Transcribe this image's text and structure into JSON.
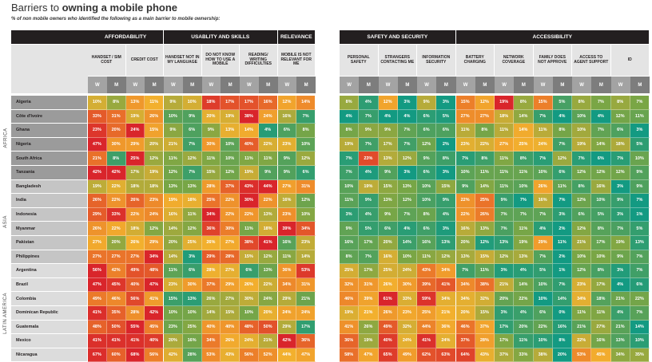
{
  "header": {
    "title_light": "Barriers to ",
    "title_bold": "owning a mobile phone",
    "subtitle": "% of non mobile owners who identified the following as a main barrier to mobile ownership:"
  },
  "chart_data": {
    "type": "heatmap",
    "title": "Barriers to owning a mobile phone",
    "subtitle": "% of non mobile owners who identified the following as a main barrier to mobile ownership:",
    "value_unit": "%",
    "gender_labels": {
      "w": "W",
      "m": "M"
    },
    "color_scale": [
      "#139a82",
      "#7aa645",
      "#f2b02e",
      "#ec7f2a",
      "#d9252b"
    ],
    "regions": [
      {
        "name": "AFRICA",
        "countries": 6,
        "label_bg": "#9b9b9b"
      },
      {
        "name": "ASIA",
        "countries": 6,
        "label_bg": "#c5c5c5"
      },
      {
        "name": "LATIN AMERICA",
        "countries": 7,
        "label_bg": "#dcdcdc"
      }
    ],
    "tables": [
      {
        "categories": [
          {
            "name": "AFFORDABILITY",
            "barriers": [
              "HANDSET / SIM COST",
              "CREDIT COST"
            ]
          },
          {
            "name": "USABLITY AND SKILLS",
            "barriers": [
              "HANDSET NOT IN MY LANGUAGE",
              "DO NOT KNOW HOW TO USE A MOBILE",
              "READING/ WRITING DIFFICULTIES"
            ]
          },
          {
            "name": "RELEVANCE",
            "barriers": [
              "MOBILE IS NOT RELEVANT FOR ME"
            ]
          }
        ]
      },
      {
        "categories": [
          {
            "name": "SAFETY AND SECURITY",
            "barriers": [
              "PERSONAL SAFETY",
              "STRANGERS CONTACTING ME",
              "INFORMATION SECURITY"
            ]
          },
          {
            "name": "ACCESSIBILITY",
            "barriers": [
              "BATTERY CHARGING",
              "NETWORK COVERAGE",
              "FAMILY DOES NOT APPROVE",
              "ACCESS TO AGENT SUPPORT",
              "ID"
            ]
          }
        ]
      }
    ],
    "countries": [
      {
        "name": "Algeria",
        "left": [
          10,
          8,
          13,
          11,
          9,
          10,
          18,
          17,
          17,
          16,
          12,
          14
        ],
        "right": [
          8,
          4,
          12,
          3,
          9,
          3,
          15,
          12,
          19,
          8,
          15,
          5,
          8,
          7,
          8,
          7
        ]
      },
      {
        "name": "Côte d'Ivoire",
        "left": [
          33,
          31,
          19,
          26,
          10,
          9,
          20,
          19,
          38,
          24,
          16,
          7
        ],
        "right": [
          4,
          7,
          4,
          4,
          6,
          5,
          27,
          27,
          18,
          14,
          7,
          4,
          10,
          4,
          12,
          11
        ]
      },
      {
        "name": "Ghana",
        "left": [
          23,
          20,
          24,
          15,
          9,
          6,
          9,
          13,
          14,
          4,
          6,
          8
        ],
        "right": [
          8,
          9,
          9,
          7,
          6,
          6,
          11,
          8,
          11,
          14,
          11,
          8,
          10,
          7,
          6,
          3
        ]
      },
      {
        "name": "Nigeria",
        "left": [
          47,
          30,
          29,
          20,
          21,
          7,
          30,
          10,
          40,
          22,
          23,
          10
        ],
        "right": [
          19,
          7,
          17,
          7,
          12,
          2,
          23,
          22,
          27,
          25,
          24,
          7,
          19,
          14,
          18,
          5
        ]
      },
      {
        "name": "South Africa",
        "left": [
          21,
          8,
          25,
          12,
          11,
          12,
          11,
          10,
          11,
          11,
          9,
          12
        ],
        "right": [
          7,
          23,
          13,
          12,
          9,
          8,
          7,
          8,
          11,
          8,
          7,
          12,
          7,
          6,
          7,
          10
        ]
      },
      {
        "name": "Tanzania",
        "left": [
          42,
          42,
          17,
          19,
          12,
          7,
          15,
          12,
          19,
          9,
          9,
          6
        ],
        "right": [
          7,
          4,
          9,
          3,
          6,
          3,
          10,
          11,
          11,
          11,
          10,
          6,
          12,
          12,
          12,
          9
        ]
      },
      {
        "name": "Bangladesh",
        "left": [
          19,
          22,
          18,
          18,
          13,
          13,
          28,
          37,
          43,
          44,
          27,
          31
        ],
        "right": [
          10,
          19,
          15,
          13,
          10,
          15,
          9,
          14,
          11,
          10,
          26,
          11,
          8,
          16,
          3,
          9
        ]
      },
      {
        "name": "India",
        "left": [
          26,
          22,
          26,
          23,
          19,
          18,
          25,
          22,
          30,
          22,
          16,
          12
        ],
        "right": [
          11,
          9,
          13,
          12,
          10,
          9,
          22,
          25,
          9,
          7,
          16,
          7,
          12,
          10,
          9,
          7
        ]
      },
      {
        "name": "Indonesia",
        "left": [
          29,
          33,
          22,
          24,
          16,
          11,
          34,
          22,
          22,
          13,
          23,
          10
        ],
        "right": [
          3,
          4,
          9,
          7,
          8,
          4,
          22,
          26,
          7,
          7,
          7,
          3,
          6,
          5,
          3,
          1
        ]
      },
      {
        "name": "Myanmar",
        "left": [
          26,
          22,
          18,
          12,
          14,
          12,
          36,
          30,
          11,
          18,
          39,
          34
        ],
        "right": [
          9,
          5,
          6,
          4,
          6,
          3,
          16,
          13,
          7,
          11,
          4,
          2,
          12,
          8,
          7,
          5
        ]
      },
      {
        "name": "Pakistan",
        "left": [
          27,
          20,
          26,
          29,
          20,
          25,
          26,
          27,
          38,
          41,
          16,
          23
        ],
        "right": [
          16,
          17,
          20,
          14,
          16,
          13,
          20,
          12,
          13,
          19,
          29,
          11,
          21,
          17,
          19,
          13
        ]
      },
      {
        "name": "Philippines",
        "left": [
          27,
          27,
          27,
          34,
          14,
          3,
          29,
          28,
          15,
          12,
          11,
          14
        ],
        "right": [
          8,
          7,
          16,
          10,
          11,
          12,
          13,
          15,
          12,
          13,
          7,
          2,
          10,
          10,
          9,
          7
        ]
      },
      {
        "name": "Argentina",
        "left": [
          56,
          42,
          49,
          48,
          11,
          6,
          28,
          27,
          6,
          13,
          36,
          53
        ],
        "right": [
          25,
          17,
          25,
          24,
          43,
          34,
          7,
          11,
          3,
          4,
          5,
          1,
          12,
          8,
          3,
          7
        ]
      },
      {
        "name": "Brazil",
        "left": [
          47,
          45,
          40,
          47,
          23,
          30,
          37,
          29,
          26,
          22,
          34,
          31
        ],
        "right": [
          32,
          31,
          26,
          30,
          39,
          41,
          34,
          38,
          21,
          14,
          10,
          7,
          23,
          17,
          4,
          6
        ]
      },
      {
        "name": "Colombia",
        "left": [
          49,
          46,
          56,
          41,
          15,
          13,
          26,
          27,
          30,
          24,
          29,
          21
        ],
        "right": [
          46,
          39,
          61,
          33,
          59,
          34,
          34,
          32,
          20,
          22,
          10,
          14,
          34,
          18,
          21,
          22
        ]
      },
      {
        "name": "Dominican Republic",
        "left": [
          41,
          35,
          28,
          42,
          10,
          10,
          14,
          15,
          10,
          20,
          24,
          24
        ],
        "right": [
          19,
          21,
          26,
          23,
          25,
          21,
          20,
          15,
          3,
          4,
          6,
          0,
          11,
          11,
          4,
          7
        ]
      },
      {
        "name": "Guatemala",
        "left": [
          48,
          50,
          55,
          45,
          23,
          25,
          40,
          40,
          48,
          50,
          29,
          17
        ],
        "right": [
          41,
          26,
          49,
          32,
          44,
          36,
          46,
          37,
          17,
          20,
          22,
          16,
          21,
          27,
          21,
          14
        ]
      },
      {
        "name": "Mexico",
        "left": [
          41,
          41,
          41,
          40,
          20,
          16,
          34,
          26,
          24,
          21,
          42,
          36
        ],
        "right": [
          36,
          19,
          40,
          24,
          41,
          24,
          37,
          28,
          17,
          11,
          10,
          8,
          22,
          16,
          13,
          10
        ]
      },
      {
        "name": "Nicaragua",
        "left": [
          67,
          60,
          68,
          56,
          42,
          28,
          53,
          43,
          56,
          52,
          44,
          47
        ],
        "right": [
          58,
          47,
          65,
          49,
          62,
          63,
          64,
          43,
          37,
          33,
          38,
          20,
          53,
          45,
          34,
          35
        ]
      }
    ]
  }
}
